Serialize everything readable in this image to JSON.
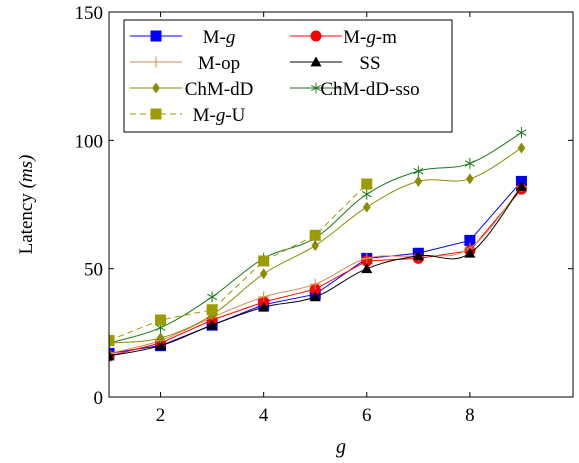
{
  "chart_data": {
    "type": "line",
    "xlabel": "g",
    "ylabel_main": "Latency ",
    "ylabel_unit": "(ms)",
    "xlim": [
      1,
      10
    ],
    "ylim": [
      0,
      150
    ],
    "xticks": [
      2,
      4,
      6,
      8
    ],
    "yticks": [
      0,
      50,
      100,
      150
    ],
    "legend_position": "top-left",
    "grid": false,
    "series": [
      {
        "name": "M-g",
        "legend": [
          {
            "t": "M-",
            "i": false
          },
          {
            "t": "g",
            "i": true
          }
        ],
        "color": "#0000ff",
        "marker": "square",
        "dash": false,
        "smooth": false,
        "x": [
          1,
          2,
          3,
          4,
          5,
          6,
          7,
          8,
          9
        ],
        "y": [
          17,
          20,
          28,
          36,
          40,
          54,
          56,
          61,
          84
        ]
      },
      {
        "name": "M-g-m",
        "legend": [
          {
            "t": "M-",
            "i": false
          },
          {
            "t": "g",
            "i": true
          },
          {
            "t": "-m",
            "i": false
          }
        ],
        "color": "#ff0000",
        "marker": "circle",
        "dash": false,
        "smooth": false,
        "x": [
          1,
          2,
          3,
          4,
          5,
          6,
          7,
          8,
          9
        ],
        "y": [
          16,
          21,
          30,
          37,
          42,
          53,
          54,
          57,
          81
        ]
      },
      {
        "name": "M-op",
        "legend": [
          {
            "t": "M-op",
            "i": false
          }
        ],
        "color": "#d4884e",
        "marker": "plus",
        "dash": false,
        "smooth": true,
        "x": [
          1,
          2,
          3,
          4,
          5,
          6,
          7,
          8,
          9
        ],
        "y": [
          17,
          22,
          31,
          39,
          44,
          54,
          55,
          58,
          82
        ]
      },
      {
        "name": "SS",
        "legend": [
          {
            "t": "SS",
            "i": false
          }
        ],
        "color": "#000000",
        "marker": "triangle",
        "dash": false,
        "smooth": true,
        "x": [
          1,
          2,
          3,
          4,
          5,
          6,
          7,
          8,
          9
        ],
        "y": [
          16,
          20,
          28,
          35,
          39,
          50,
          55,
          56,
          82
        ]
      },
      {
        "name": "ChM-dD",
        "legend": [
          {
            "t": "ChM-dD",
            "i": false
          }
        ],
        "color": "#8c8c00",
        "marker": "diamond",
        "dash": false,
        "smooth": true,
        "x": [
          1,
          2,
          3,
          4,
          5,
          6,
          7,
          8,
          9
        ],
        "y": [
          21,
          23,
          32,
          48,
          59,
          74,
          84,
          85,
          97
        ]
      },
      {
        "name": "ChM-dD-sso",
        "legend": [
          {
            "t": "ChM-dD-sso",
            "i": false
          }
        ],
        "color": "#1a7a1a",
        "marker": "star",
        "dash": false,
        "smooth": true,
        "x": [
          1,
          2,
          3,
          4,
          5,
          6,
          7,
          8,
          9
        ],
        "y": [
          21,
          27,
          39,
          54,
          62,
          79,
          88,
          91,
          103
        ]
      },
      {
        "name": "M-g-U",
        "legend": [
          {
            "t": "M-",
            "i": false
          },
          {
            "t": "g",
            "i": true
          },
          {
            "t": "-U",
            "i": false
          }
        ],
        "color": "#9c9c00",
        "marker": "square",
        "dash": true,
        "smooth": false,
        "x": [
          1,
          2,
          3,
          4,
          5,
          6
        ],
        "y": [
          22,
          30,
          34,
          53,
          63,
          83
        ]
      }
    ]
  }
}
